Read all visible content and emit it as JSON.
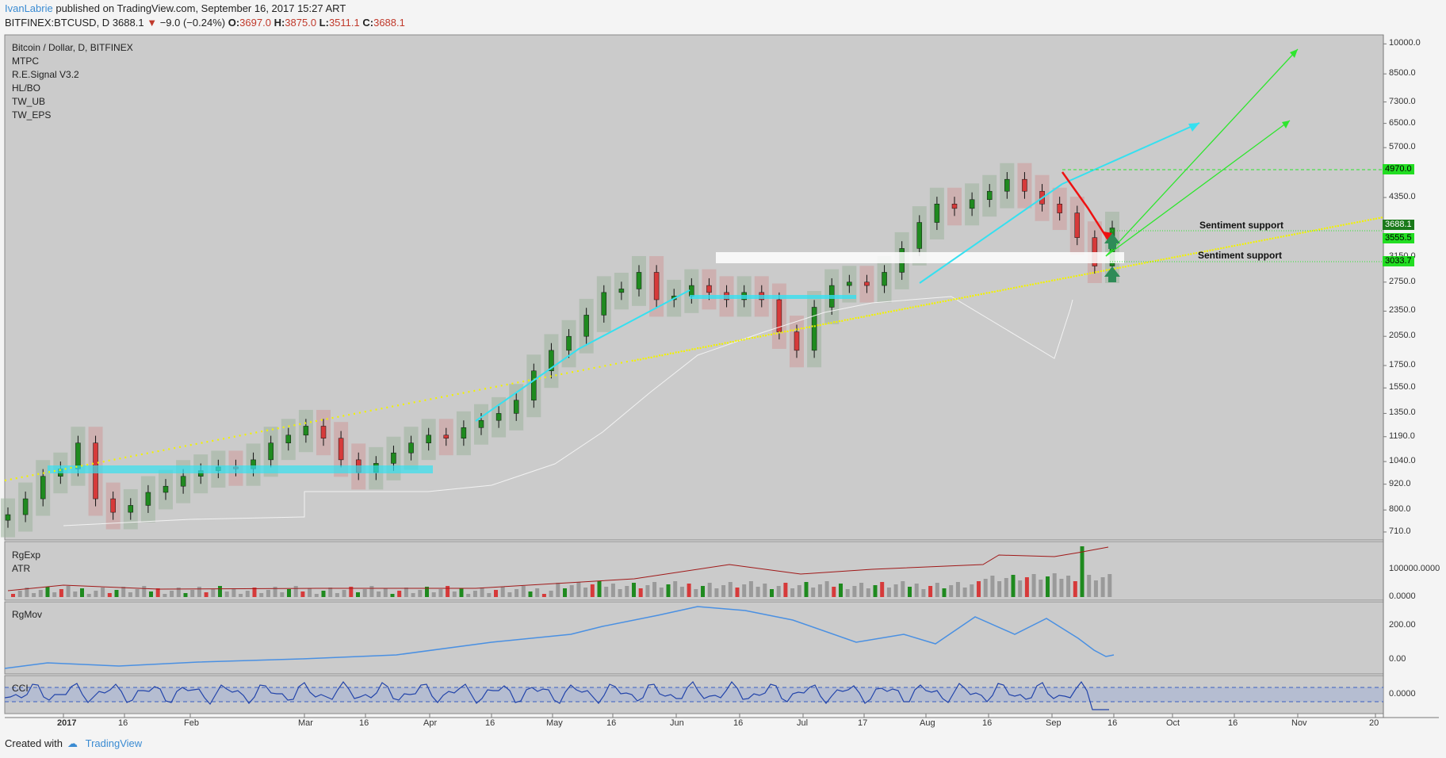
{
  "header": {
    "author": "IvanLabrie",
    "published": "published on TradingView.com, September 16, 2017 15:27 ART",
    "symbol": "BITFINEX:BTCUSD, D",
    "last": "3688.1",
    "change": "−9.0 (−0.24%)",
    "o_label": "O:",
    "o_val": "3697.0",
    "h_label": "H:",
    "h_val": "3875.0",
    "l_label": "L:",
    "l_val": "3511.1",
    "c_label": "C:",
    "c_val": "3688.1"
  },
  "legend": [
    "Bitcoin / Dollar, D, BITFINEX",
    "MTPC",
    "R.E.Signal V3.2",
    "HL/BO",
    "TW_UB",
    "TW_EPS"
  ],
  "panes": {
    "rgexp": "RgExp",
    "atr": "ATR",
    "rgmov": "RgMov",
    "cci": "CCI"
  },
  "annotations": [
    "Sentiment support",
    "Sentiment support"
  ],
  "price_tags": [
    {
      "label": "4970.0",
      "bg": "#22dd22",
      "fg": "#000000"
    },
    {
      "label": "3688.1",
      "bg": "#1a7a1a",
      "fg": "#ffffff"
    },
    {
      "label": "3555.5",
      "bg": "#22dd22",
      "fg": "#000000"
    },
    {
      "label": "3033.7",
      "bg": "#22dd22",
      "fg": "#000000"
    }
  ],
  "y_axis_main": [
    "10000.0",
    "8500.0",
    "7300.0",
    "6500.0",
    "5700.0",
    "4350.0",
    "3150.0",
    "2750.0",
    "2350.0",
    "2050.0",
    "1750.0",
    "1550.0",
    "1350.0",
    "1190.0",
    "1040.0",
    "920.0",
    "800.0",
    "710.0"
  ],
  "y_axis_rgexp": [
    "100000.0000",
    "0.0000"
  ],
  "y_axis_rgmov": [
    "200.00",
    "0.00"
  ],
  "y_axis_cci": [
    "0.0000"
  ],
  "x_axis": [
    {
      "label": "2017",
      "bold": true
    },
    {
      "label": "16"
    },
    {
      "label": "Feb"
    },
    {
      "label": "Mar"
    },
    {
      "label": "16"
    },
    {
      "label": "Apr"
    },
    {
      "label": "16"
    },
    {
      "label": "May"
    },
    {
      "label": "16"
    },
    {
      "label": "Jun"
    },
    {
      "label": "16"
    },
    {
      "label": "Jul"
    },
    {
      "label": "17"
    },
    {
      "label": "Aug"
    },
    {
      "label": "16"
    },
    {
      "label": "Sep"
    },
    {
      "label": "16"
    },
    {
      "label": "Oct"
    },
    {
      "label": "16"
    },
    {
      "label": "Nov"
    },
    {
      "label": "20"
    }
  ],
  "footer": {
    "created": "Created with",
    "brand": "TradingView"
  },
  "colors": {
    "chart_bg": "#cbcbcb",
    "pane_bg": "#cbcbcb",
    "up": "#1f8a1f",
    "down": "#d63a3a",
    "cyan": "#35e0f0",
    "yellow": "#f2f200",
    "green_line": "#2ee62e",
    "red_line": "#ee1111",
    "rgmov_line": "#4a90e2",
    "rgexp_line": "#a01818"
  },
  "chart_data": {
    "type": "line",
    "series": [
      {
        "values": [
          780,
          850,
          960,
          1000,
          1150,
          850,
          790,
          820,
          880,
          910,
          960,
          990,
          1010,
          1000,
          1050,
          1150,
          1200,
          1260,
          1180,
          1050,
          980,
          1030,
          1090,
          1150,
          1200,
          1180,
          1250,
          1300,
          1350,
          1450,
          1700,
          1900,
          2050,
          2300,
          2600,
          2650,
          2900,
          2500,
          2550,
          2700,
          2600,
          2500,
          2600,
          2500,
          2100,
          1900,
          2400,
          2700,
          2750,
          2700,
          2900,
          3300,
          3800,
          4200,
          4100,
          4300,
          4500,
          4800,
          4500,
          4200,
          4000,
          3500,
          3000,
          3688
        ]
      }
    ],
    "ylim": [
      680,
      10500
    ],
    "y_scale": "log"
  }
}
